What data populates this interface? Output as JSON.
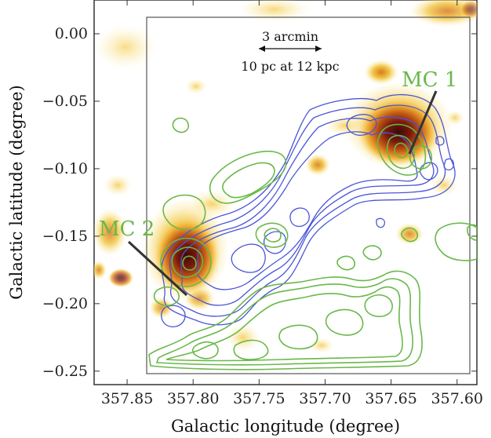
{
  "axes": {
    "xlabel": "Galactic longitude (degree)",
    "ylabel": "Galactic latitude (degree)",
    "xlim": [
      357.585,
      357.875
    ],
    "ylim": [
      -0.26,
      0.025
    ],
    "x_reversed": true,
    "xticks": [
      357.85,
      357.8,
      357.75,
      357.7,
      357.65,
      357.6
    ],
    "xtick_labels": [
      "357.85",
      "357.80",
      "357.75",
      "357.70",
      "357.65",
      "357.60"
    ],
    "yticks": [
      0.0,
      -0.05,
      -0.1,
      -0.15,
      -0.2,
      -0.25
    ],
    "ytick_labels": [
      "0.00",
      "−0.05",
      "−0.10",
      "−0.15",
      "−0.20",
      "−0.25"
    ]
  },
  "scale_bar": {
    "label_top": "3 arcmin",
    "label_bottom": "10 pc at 12 kpc"
  },
  "annotations": [
    {
      "text": "MC 1",
      "color": "#6ab84a"
    },
    {
      "text": "MC 2",
      "color": "#6ab84a"
    }
  ],
  "colors": {
    "blue_contour": "#4a55d6",
    "green_contour": "#6ab84a",
    "heat_core": "#5a0f0a",
    "heat_mid": "#b04a12",
    "heat_low": "#f2c84a",
    "frame": "#333333"
  },
  "chart_data": {
    "type": "heatmap",
    "xlabel": "Galactic longitude (degree)",
    "ylabel": "Galactic latitude (degree)",
    "xlim": [
      357.875,
      357.585
    ],
    "ylim": [
      -0.26,
      0.025
    ],
    "grid": false,
    "emission_peaks": [
      {
        "name": "MC 1",
        "l": 357.645,
        "b": -0.073,
        "intensity": "high"
      },
      {
        "name": "MC 2",
        "l": 357.798,
        "b": -0.165,
        "intensity": "high"
      }
    ]
  }
}
